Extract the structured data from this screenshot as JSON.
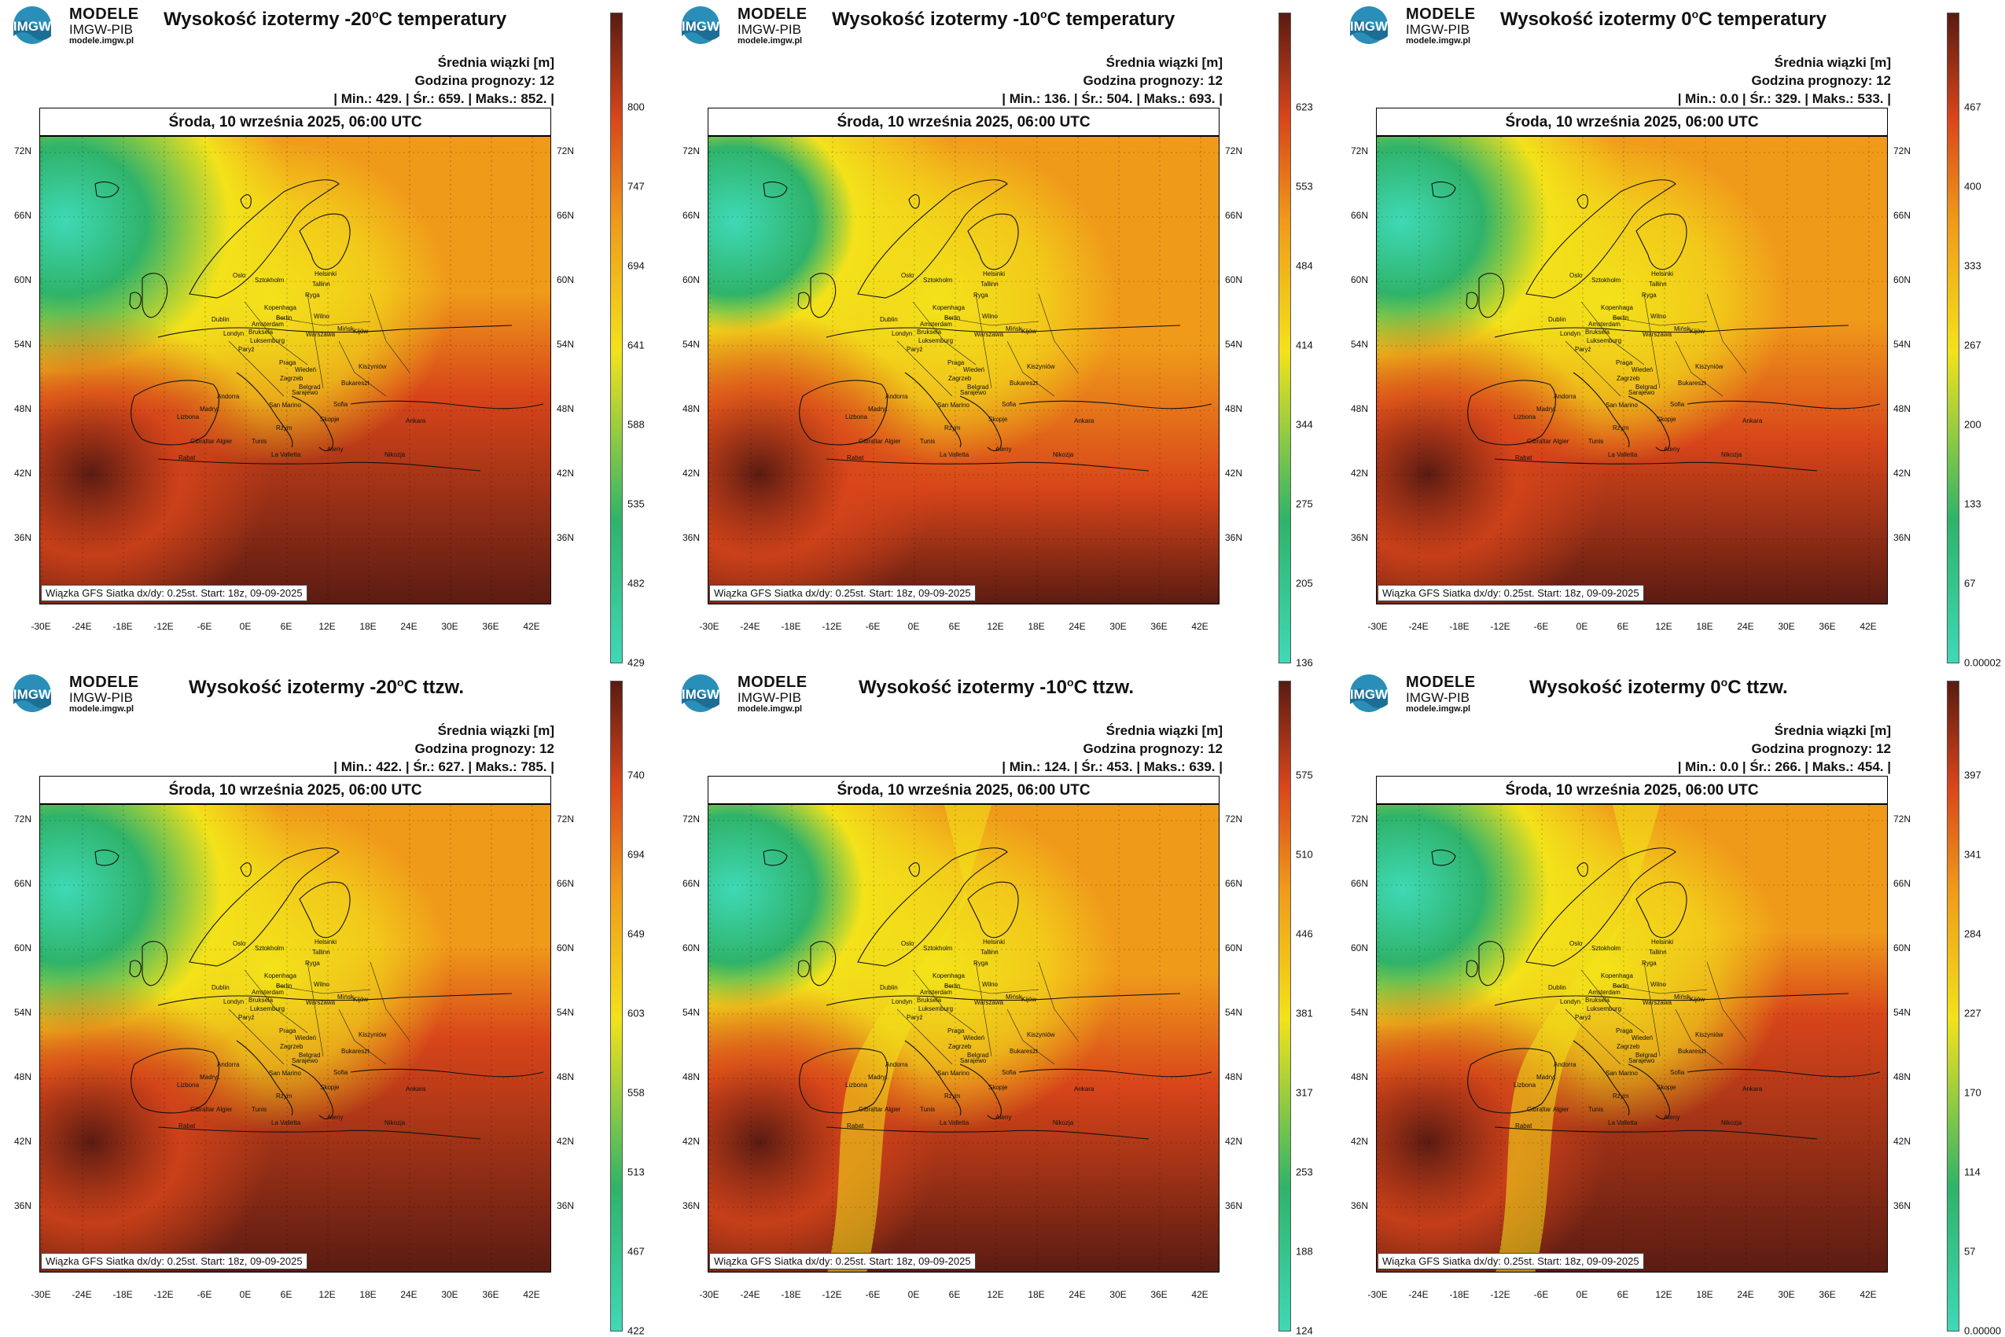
{
  "brand": {
    "name": "MODELE",
    "org": "IMGW-PIB",
    "site": "modele.imgw.pl",
    "logo_text": "IMGW"
  },
  "common": {
    "legend_title": "Średnia wiązki [m]",
    "forecast_hour": "Godzina prognozy: 12",
    "date_line": "Środa, 10 września 2025, 06:00 UTC",
    "source_note": "Wiązka GFS Siatka dx/dy: 0.25st. Start: 18z, 09-09-2025",
    "lat_labels": [
      "72N",
      "66N",
      "60N",
      "54N",
      "48N",
      "42N",
      "36N"
    ],
    "lon_labels": [
      "-30E",
      "-24E",
      "-18E",
      "-12E",
      "-6E",
      "0E",
      "6E",
      "12E",
      "18E",
      "24E",
      "30E",
      "36E",
      "42E"
    ],
    "cities": [
      "Oslo",
      "Sztokholm",
      "Helsinki",
      "Tallinn",
      "Ryga",
      "Kopenhaga",
      "Wilno",
      "Mińsk",
      "Dublin",
      "Londyn",
      "Amsterdam",
      "Berlin",
      "Warszawa",
      "Bruksela",
      "Luksemburg",
      "Paryż",
      "Praga",
      "Kijów",
      "Wiedeń",
      "Kiszyniów",
      "Zagrzeb",
      "Belgrad",
      "Bukareszt",
      "Andorra",
      "San Marino",
      "Sarajewo",
      "Sofia",
      "Madryt",
      "Lizbona",
      "Rzym",
      "Skopje",
      "Ankara",
      "Gibraltar",
      "Algier",
      "Tunis",
      "La Valletta",
      "Rabat",
      "Ateny",
      "Nikozja"
    ]
  },
  "panels": [
    {
      "title_pre": "Wysokość izotermy -20",
      "title_deg": "o",
      "title_post": "C temperatury",
      "stats": "| Min.:  429. | Śr.:  659. | Maks.:  852. |",
      "colorbar_ticks": [
        "800",
        "747",
        "694",
        "641",
        "588",
        "535",
        "482",
        "429"
      ]
    },
    {
      "title_pre": "Wysokość izotermy -10",
      "title_deg": "o",
      "title_post": "C temperatury",
      "stats": "| Min.:  136. | Śr.:  504. | Maks.:  693. |",
      "colorbar_ticks": [
        "623",
        "553",
        "484",
        "414",
        "344",
        "275",
        "205",
        "136"
      ]
    },
    {
      "title_pre": "Wysokość izotermy 0",
      "title_deg": "o",
      "title_post": "C temperatury",
      "stats": "| Min.:  0.0 | Śr.:  329. | Maks.:  533. |",
      "colorbar_ticks": [
        "467",
        "400",
        "333",
        "267",
        "200",
        "133",
        "67",
        "0.00002"
      ]
    },
    {
      "title_pre": "Wysokość izotermy -20",
      "title_deg": "o",
      "title_post": "C ttzw.",
      "stats": "| Min.:  422. | Śr.:  627. | Maks.:  785. |",
      "colorbar_ticks": [
        "740",
        "694",
        "649",
        "603",
        "558",
        "513",
        "467",
        "422"
      ]
    },
    {
      "title_pre": "Wysokość izotermy -10",
      "title_deg": "o",
      "title_post": "C ttzw.",
      "stats": "| Min.:  124. | Śr.:  453. | Maks.:  639. |",
      "colorbar_ticks": [
        "575",
        "510",
        "446",
        "381",
        "317",
        "253",
        "188",
        "124"
      ]
    },
    {
      "title_pre": "Wysokość izotermy 0",
      "title_deg": "o",
      "title_post": "C ttzw.",
      "stats": "| Min.:  0.0 | Śr.:  266. | Maks.:  454. |",
      "colorbar_ticks": [
        "397",
        "341",
        "284",
        "227",
        "170",
        "114",
        "57",
        "0.00000"
      ]
    }
  ],
  "colors": {
    "teal": "#3fd9b6",
    "green": "#2fb36a",
    "yellow": "#f3e21a",
    "orange": "#f09a1a",
    "red": "#d8451a",
    "darkred": "#5a1b12"
  }
}
